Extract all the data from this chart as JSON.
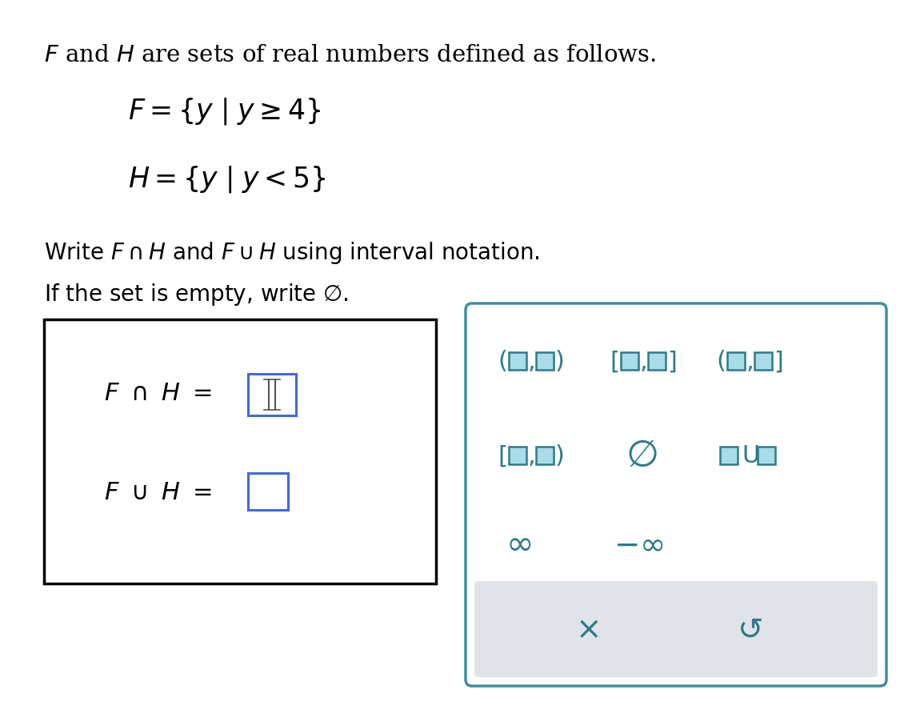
{
  "bg_color": "#ffffff",
  "teal": "#3a8fa0",
  "teal_dark": "#2e7a8a",
  "blue_box": "#4169e1",
  "gray_strip": "#e0e4e8",
  "black": "#000000",
  "light_teal": "#a8dce8",
  "fig_w": 11.5,
  "fig_h": 8.78,
  "dpi": 100
}
